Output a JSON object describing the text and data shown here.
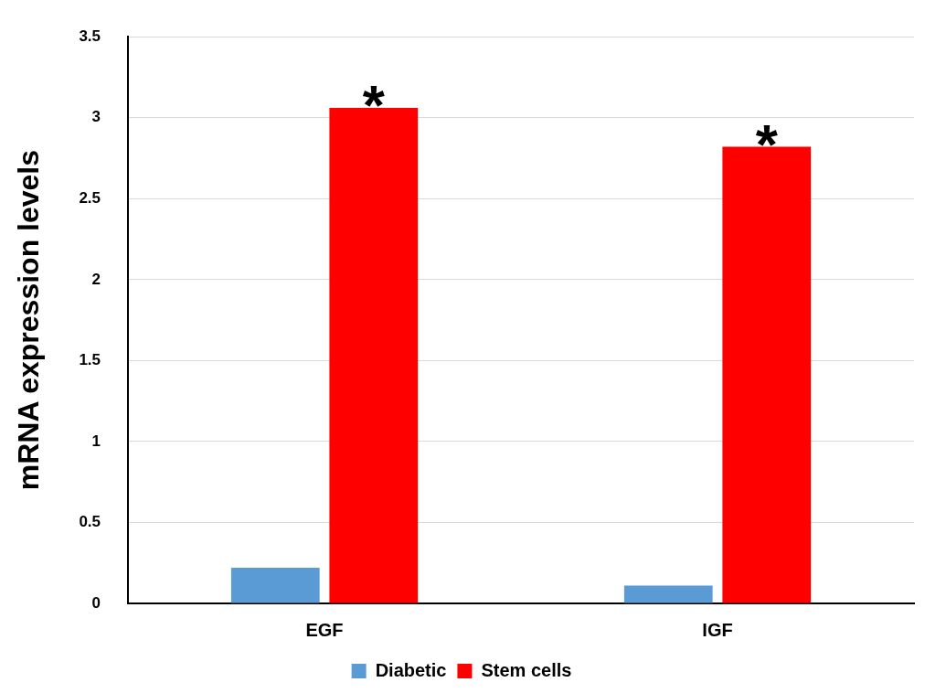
{
  "chart_data": {
    "type": "bar",
    "ylabel": "mRNA expression levels",
    "categories": [
      "EGF",
      "IGF"
    ],
    "series": [
      {
        "name": "Diabetic",
        "color": "#5b9bd5",
        "values": [
          0.22,
          0.11
        ]
      },
      {
        "name": "Stem cells",
        "color": "#ff0000",
        "values": [
          3.06,
          2.82
        ]
      }
    ],
    "ylim": [
      0,
      3.5
    ],
    "yticks": [
      0,
      0.5,
      1,
      1.5,
      2,
      2.5,
      3,
      3.5
    ],
    "grid": "y",
    "legend": "bottom",
    "annotations": [
      "*",
      "*"
    ]
  }
}
